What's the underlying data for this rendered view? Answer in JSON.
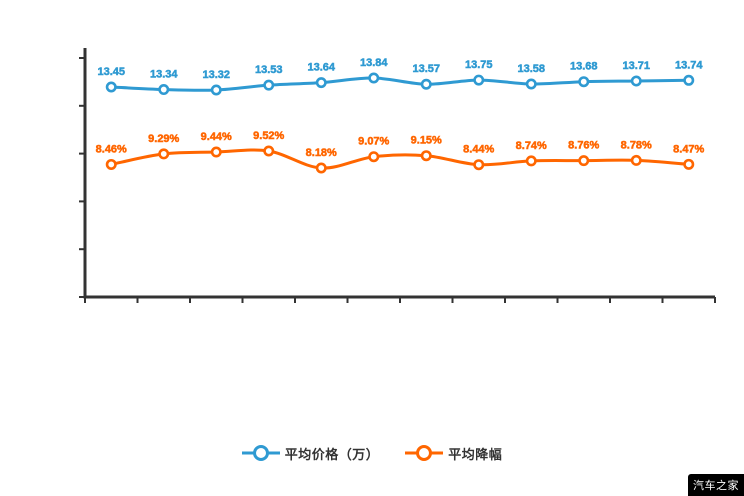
{
  "chart_data": {
    "type": "line",
    "title": "",
    "grid": false,
    "legend_position": "bottom",
    "axis_color": "#333333",
    "x_axis_labels": [],
    "y_axis_labels": [],
    "point_count": 12,
    "series": [
      {
        "name": "平均价格（万）",
        "color": "#2f9ad2",
        "values": [
          13.45,
          13.34,
          13.32,
          13.53,
          13.64,
          13.84,
          13.57,
          13.75,
          13.58,
          13.68,
          13.71,
          13.74
        ],
        "labels": [
          "13.45",
          "13.34",
          "13.32",
          "13.53",
          "13.64",
          "13.84",
          "13.57",
          "13.75",
          "13.58",
          "13.68",
          "13.71",
          "13.74"
        ]
      },
      {
        "name": "平均降幅",
        "color": "#ff6600",
        "values": [
          8.46,
          9.29,
          9.44,
          9.52,
          8.18,
          9.07,
          9.15,
          8.44,
          8.74,
          8.76,
          8.78,
          8.47
        ],
        "labels": [
          "8.46%",
          "9.29%",
          "9.44%",
          "9.52%",
          "8.18%",
          "9.07%",
          "9.15%",
          "8.44%",
          "8.74%",
          "8.76%",
          "8.78%",
          "8.47%"
        ]
      }
    ]
  },
  "legend": {
    "items": [
      {
        "label": "平均价格（万）",
        "color": "#2f9ad2"
      },
      {
        "label": "平均降幅",
        "color": "#ff6600"
      }
    ]
  },
  "watermark": {
    "text": "汽车之家"
  }
}
